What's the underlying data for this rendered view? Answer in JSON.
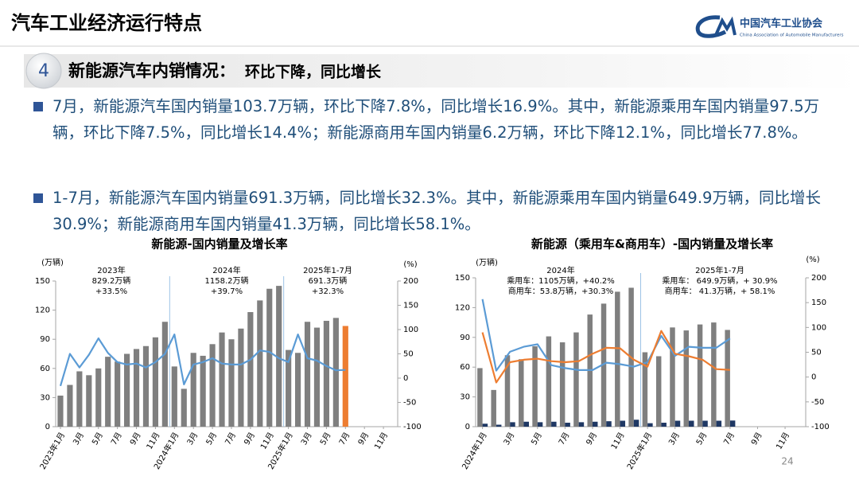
{
  "header": {
    "title": "汽车工业经济运行特点",
    "logo_cn": "中国汽车工业协会",
    "logo_en": "China Association of Automobile Manufacturers"
  },
  "section": {
    "number": "4",
    "heading": "新能源汽车内销情况：",
    "subheading": "环比下降，同比增长"
  },
  "bullets": [
    "7月，新能源汽车国内销量103.7万辆，环比下降7.8%，同比增长16.9%。其中，新能源乘用车国内销量97.5万辆，环比下降7.5%，同比增长14.4%；新能源商用车国内销量6.2万辆，环比下降12.1%，同比增长77.8%。",
    "1-7月，新能源汽车国内销量691.3万辆，同比增长32.3%。其中，新能源乘用车国内销量649.9万辆，同比增长30.9%；新能源商用车国内销量41.3万辆，同比增长58.1%。"
  ],
  "page_number": "24",
  "chart_data": [
    {
      "type": "combo",
      "title": "新能源-国内销量及增长率",
      "y_label": "(万辆)",
      "y2_label": "(%)",
      "bar_layout": "overlap",
      "categories": [
        "2023年1月",
        null,
        "3月",
        null,
        "5月",
        null,
        "7月",
        null,
        "9月",
        null,
        "11月",
        null,
        "2024年1月",
        null,
        "3月",
        null,
        "5月",
        null,
        "7月",
        null,
        "9月",
        null,
        "11月",
        null,
        "2025年1月",
        null,
        "3月",
        null,
        "5月",
        null,
        "7月",
        null,
        "9月",
        null,
        "11月",
        null
      ],
      "ylim": [
        0,
        150
      ],
      "yticks": [
        0,
        30,
        60,
        90,
        120,
        150
      ],
      "y2lim": [
        -100,
        200
      ],
      "y2ticks": [
        -100,
        -50,
        0,
        50,
        100,
        150,
        200
      ],
      "series": [
        {
          "type": "bar",
          "color": "#7f7f7f",
          "values": [
            32,
            43,
            57,
            53,
            60,
            72,
            67,
            75,
            80,
            83,
            92,
            108,
            62,
            39,
            76,
            73,
            85,
            97,
            90,
            101,
            118,
            130,
            142,
            145,
            79,
            76,
            108,
            102,
            109,
            112,
            null,
            null,
            null,
            null,
            null,
            null
          ]
        },
        {
          "type": "bar",
          "color": "#ed7d31",
          "values": [
            null,
            null,
            null,
            null,
            null,
            null,
            null,
            null,
            null,
            null,
            null,
            null,
            null,
            null,
            null,
            null,
            null,
            null,
            null,
            null,
            null,
            null,
            null,
            null,
            null,
            null,
            null,
            null,
            null,
            null,
            103.7,
            null,
            null,
            null,
            null,
            null
          ]
        },
        {
          "type": "line",
          "axis": "y2",
          "color": "#5b9bd5",
          "values": [
            -16,
            50,
            22,
            48,
            82,
            52,
            33,
            28,
            30,
            22,
            33,
            50,
            90,
            -13,
            28,
            33,
            41,
            30,
            28,
            28,
            38,
            57,
            54,
            41,
            33,
            90,
            41,
            36,
            25,
            16,
            16.9,
            null,
            null,
            null,
            null,
            null
          ]
        }
      ],
      "annotations": [
        [
          "2023年",
          "829.2万辆",
          "+33.5%"
        ],
        [
          "2024年",
          "1158.2万辆",
          "+39.7%"
        ],
        [
          "2025年1-7月",
          "691.3万辆",
          "+32.3%"
        ]
      ]
    },
    {
      "type": "combo",
      "title": "新能源（乘用车&商用车）-国内销量及增长率",
      "y_label": "(万辆)",
      "y2_label": "(%)",
      "bar_layout": "grouped",
      "categories": [
        "2024年1月",
        null,
        "3月",
        null,
        "5月",
        null,
        "7月",
        null,
        "9月",
        null,
        "11月",
        null,
        "2025年1月",
        null,
        "3月",
        null,
        "5月",
        null,
        "7月",
        null,
        "9月",
        null,
        "11月",
        null
      ],
      "ylim": [
        0,
        150
      ],
      "yticks": [
        0,
        30,
        60,
        90,
        120,
        150
      ],
      "y2lim": [
        -100,
        200
      ],
      "y2ticks": [
        -100,
        -50,
        0,
        50,
        100,
        150,
        200
      ],
      "series": [
        {
          "type": "bar",
          "color": "#7f7f7f",
          "values": [
            59,
            37,
            72,
            68,
            81,
            91,
            85,
            95,
            113,
            124,
            136,
            140,
            75,
            71,
            100,
            97,
            103,
            105,
            97.5,
            null,
            null,
            null,
            null,
            null
          ]
        },
        {
          "type": "bar",
          "color": "#1f3864",
          "values": [
            3,
            2,
            4.5,
            5,
            4.5,
            5,
            4,
            4.5,
            5,
            5.5,
            6,
            7,
            3.5,
            4,
            6,
            6,
            6,
            6,
            6.2,
            null,
            null,
            null,
            null,
            null
          ]
        },
        {
          "type": "line",
          "axis": "y2",
          "color": "#5b9bd5",
          "values": [
            157,
            13,
            51,
            61,
            66,
            24,
            18,
            14,
            14,
            29,
            26,
            21,
            30,
            83,
            43,
            61,
            59,
            59,
            77.8,
            null,
            null,
            null,
            null,
            null
          ]
        },
        {
          "type": "line",
          "axis": "y2",
          "color": "#ed7d31",
          "values": [
            90,
            -11,
            30,
            35,
            37,
            32,
            30,
            32,
            47,
            59,
            58,
            35,
            21,
            93,
            47,
            42,
            35,
            16,
            14.4,
            null,
            null,
            null,
            null,
            null
          ]
        }
      ],
      "annotations": [
        [
          "2024年",
          "乘用车：1105万辆，+40.2%",
          "商用车：53.8万辆，+30.3%"
        ],
        [
          "2025年1-7月",
          "乘用车： 649.9万辆，+ 30.9%",
          "商用车： 41.3万辆，+ 58.1%"
        ]
      ]
    }
  ]
}
